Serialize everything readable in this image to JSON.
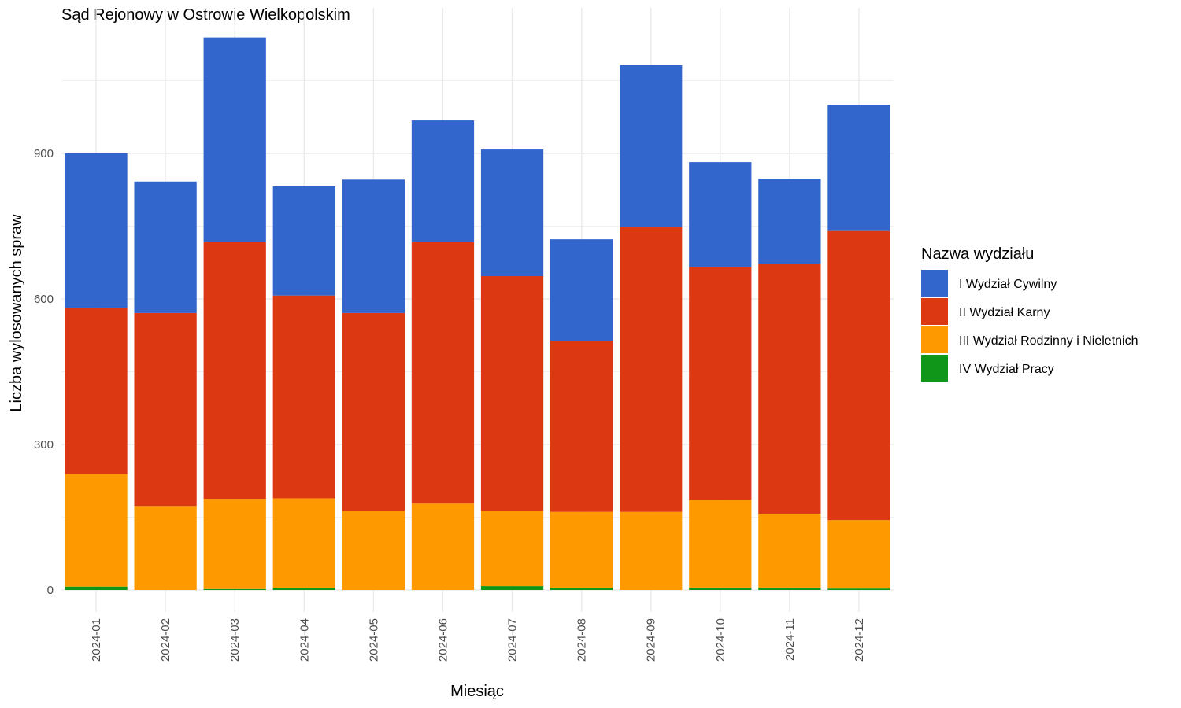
{
  "chart_data": {
    "type": "bar",
    "stacked": true,
    "title": "Sąd Rejonowy w Ostrowie Wielkopolskim",
    "xlabel": "Miesiąc",
    "ylabel": "Liczba wylosowanych spraw",
    "ylim": [
      0,
      1180
    ],
    "yticks": [
      0,
      300,
      600,
      900
    ],
    "grid": true,
    "legend": {
      "title": "Nazwa wydziału",
      "position": "right"
    },
    "categories": [
      "2024-01",
      "2024-02",
      "2024-03",
      "2024-04",
      "2024-05",
      "2024-06",
      "2024-07",
      "2024-08",
      "2024-09",
      "2024-10",
      "2024-11",
      "2024-12"
    ],
    "series": [
      {
        "name": "IV Wydział Pracy",
        "color": "#109618",
        "values": [
          7,
          0,
          2,
          4,
          0,
          0,
          8,
          4,
          0,
          5,
          5,
          3
        ]
      },
      {
        "name": "III Wydział Rodzinny i Nieletnich",
        "color": "#FF9900",
        "values": [
          232,
          173,
          186,
          185,
          163,
          178,
          155,
          157,
          161,
          181,
          152,
          141
        ]
      },
      {
        "name": "II Wydział Karny",
        "color": "#DC3912",
        "values": [
          342,
          398,
          529,
          418,
          408,
          539,
          484,
          353,
          587,
          479,
          515,
          596
        ]
      },
      {
        "name": "I Wydział Cywilny",
        "color": "#3366CC",
        "values": [
          319,
          271,
          422,
          225,
          275,
          251,
          261,
          209,
          334,
          217,
          176,
          260
        ]
      }
    ]
  }
}
